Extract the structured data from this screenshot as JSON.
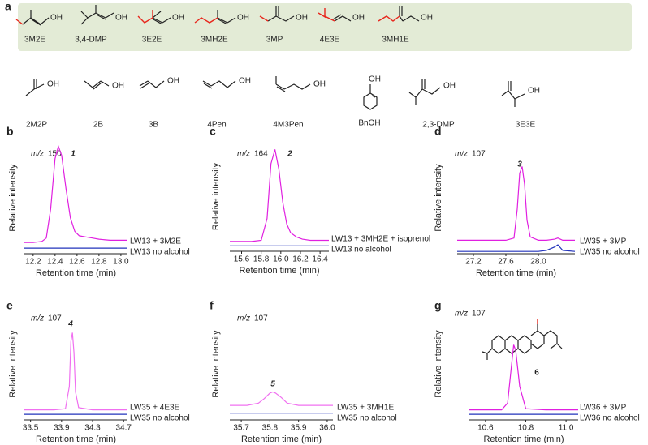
{
  "panel_a": {
    "label": "a",
    "hydroxyl_label": "OH",
    "row1": [
      "3M2E",
      "3,4-DMP",
      "3E2E",
      "3MH2E",
      "3MP",
      "4E3E",
      "3MH1E"
    ],
    "row2": [
      "2M2P",
      "2B",
      "3B",
      "4Pen",
      "4M3Pen",
      "BnOH",
      "2,3-DMP",
      "3E3E"
    ]
  },
  "chart_data": [
    {
      "type": "line",
      "panel": "b",
      "ion_prefix": "m/z",
      "ion_mass": "150",
      "peak_label": "1",
      "xlabel": "Retention time (min)",
      "ylabel": "Relative intensity",
      "xlim": [
        12.12,
        13.06
      ],
      "ylim": [
        0,
        100
      ],
      "xticks": [
        12.2,
        12.4,
        12.6,
        12.8,
        {
          "value": 13,
          "label": "13.0"
        }
      ],
      "x": [
        12.12,
        12.2,
        12.28,
        12.32,
        12.36,
        12.4,
        12.43,
        12.46,
        12.5,
        12.54,
        12.58,
        12.62,
        12.68,
        12.74,
        12.8,
        12.9,
        13.0,
        13.06
      ],
      "series": [
        {
          "name": "LW13 + 3M2E",
          "color": "#e020e0",
          "values": [
            10,
            10,
            11,
            14,
            40,
            85,
            96,
            88,
            58,
            32,
            20,
            16,
            15,
            14,
            13,
            12,
            12,
            12
          ]
        },
        {
          "name": "LW13 no alcohol",
          "color": "#2233bb",
          "values": [
            5,
            5,
            5,
            5,
            5,
            5,
            5,
            5,
            5,
            5,
            5,
            5,
            5,
            5,
            5,
            5,
            5,
            5
          ]
        }
      ]
    },
    {
      "type": "line",
      "panel": "c",
      "ion_prefix": "m/z",
      "ion_mass": "164",
      "peak_label": "2",
      "xlabel": "Retention time (min)",
      "ylabel": "Relative intensity",
      "xlim": [
        15.48,
        16.49
      ],
      "ylim": [
        0,
        100
      ],
      "xticks": [
        15.6,
        15.8,
        {
          "value": 16,
          "label": "16.0"
        },
        16.2,
        16.4
      ],
      "x": [
        15.48,
        15.6,
        15.7,
        15.8,
        15.86,
        15.9,
        15.94,
        15.98,
        16.02,
        16.06,
        16.1,
        16.16,
        16.22,
        16.3,
        16.4,
        16.49
      ],
      "series": [
        {
          "name": "LW13 + 3MH2E + isoprenol",
          "color": "#e020e0",
          "values": [
            9,
            9,
            9,
            10,
            30,
            80,
            93,
            75,
            45,
            25,
            17,
            13,
            11,
            10,
            10,
            10
          ]
        },
        {
          "name": "LW13 no alcohol",
          "color": "#2233bb",
          "values": [
            5,
            5,
            5,
            5,
            5,
            5,
            5,
            5,
            5,
            5,
            5,
            5,
            5,
            5,
            5,
            5
          ]
        }
      ]
    },
    {
      "type": "line",
      "panel": "d",
      "ion_prefix": "m/z",
      "ion_mass": "107",
      "peak_label": "3",
      "xlabel": "Retention time (min)",
      "ylabel": "Relative intensity",
      "xlim": [
        27.0,
        28.45
      ],
      "ylim": [
        0,
        100
      ],
      "xticks": [
        27.2,
        27.6,
        {
          "value": 28,
          "label": "28.0"
        }
      ],
      "x": [
        27.0,
        27.2,
        27.4,
        27.6,
        27.7,
        27.74,
        27.77,
        27.8,
        27.83,
        27.86,
        27.9,
        28.0,
        28.1,
        28.2,
        28.24,
        28.3,
        28.45
      ],
      "series": [
        {
          "name": "LW35 + 3MP",
          "color": "#e020e0",
          "values": [
            12,
            12,
            12,
            12,
            14,
            40,
            72,
            78,
            62,
            30,
            15,
            12,
            12,
            13,
            14,
            12,
            12
          ]
        },
        {
          "name": "LW35 no alcohol",
          "color": "#2233bb",
          "values": [
            2,
            2,
            2,
            2,
            2,
            2,
            2,
            2,
            2,
            2,
            2,
            2,
            3,
            6,
            8,
            3,
            2
          ]
        }
      ]
    },
    {
      "type": "line",
      "panel": "e",
      "ion_prefix": "m/z",
      "ion_mass": "107",
      "peak_label": "4",
      "xlabel": "Retention time (min)",
      "ylabel": "Relative intensity",
      "xlim": [
        33.42,
        34.75
      ],
      "ylim": [
        0,
        100
      ],
      "xticks": [
        33.5,
        33.9,
        34.3,
        34.7
      ],
      "x": [
        33.42,
        33.6,
        33.8,
        33.95,
        34.0,
        34.02,
        34.04,
        34.06,
        34.08,
        34.12,
        34.3,
        34.5,
        34.75
      ],
      "series": [
        {
          "name": "LW35 + 4E3E",
          "color": "#f070f0",
          "values": [
            9,
            9,
            9,
            10,
            30,
            70,
            78,
            60,
            25,
            11,
            9,
            9,
            9
          ]
        },
        {
          "name": "LW35 no alcohol",
          "color": "#2233bb",
          "values": [
            5,
            5,
            5,
            5,
            5,
            5,
            5,
            5,
            5,
            5,
            5,
            5,
            5
          ]
        }
      ]
    },
    {
      "type": "line",
      "panel": "f",
      "ion_prefix": "m/z",
      "ion_mass": "107",
      "peak_label": "5",
      "xlabel": "Retention time (min)",
      "ylabel": "Relative intensity",
      "xlim": [
        35.66,
        36.02
      ],
      "ylim": [
        0,
        100
      ],
      "xticks": [
        35.7,
        35.8,
        35.9,
        {
          "value": 36,
          "label": "36.0"
        }
      ],
      "x": [
        35.66,
        35.72,
        35.76,
        35.78,
        35.8,
        35.81,
        35.82,
        35.84,
        35.86,
        35.9,
        35.96,
        36.02
      ],
      "series": [
        {
          "name": "LW35 + 3MH1E",
          "color": "#f070f0",
          "values": [
            13,
            13,
            15,
            19,
            24,
            25,
            24,
            20,
            15,
            13,
            13,
            13
          ]
        },
        {
          "name": "LW35 no alcohol",
          "color": "#2233bb",
          "values": [
            6,
            6,
            6,
            6,
            6,
            6,
            6,
            6,
            6,
            6,
            6,
            6
          ]
        }
      ]
    },
    {
      "type": "line",
      "panel": "g",
      "ion_prefix": "m/z",
      "ion_mass": "107",
      "structure_label": "6",
      "xlabel": "Retention time (min)",
      "ylabel": "Relative intensity",
      "xlim": [
        10.52,
        11.06
      ],
      "ylim": [
        0,
        100
      ],
      "xticks": [
        10.6,
        10.8,
        {
          "value": 11,
          "label": "11.0"
        }
      ],
      "x": [
        10.52,
        10.6,
        10.68,
        10.71,
        10.73,
        10.74,
        10.75,
        10.77,
        10.8,
        10.9,
        11.0,
        11.06
      ],
      "series": [
        {
          "name": "LW36 + 3MP",
          "color": "#e020e0",
          "values": [
            9,
            9,
            9,
            15,
            50,
            67,
            62,
            30,
            10,
            9,
            9,
            9
          ]
        },
        {
          "name": "LW36 no alcohol",
          "color": "#2233bb",
          "values": [
            5,
            5,
            5,
            5,
            5,
            5,
            5,
            5,
            5,
            5,
            5,
            5
          ]
        }
      ]
    }
  ]
}
